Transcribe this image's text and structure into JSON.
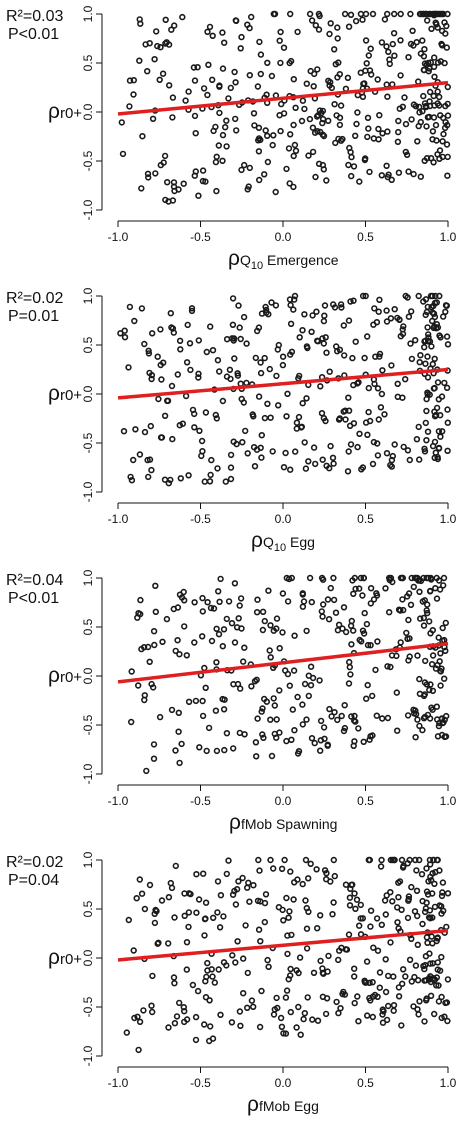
{
  "chart_data": [
    {
      "type": "scatter",
      "stats": {
        "r2": "R²=0.03",
        "p": "P<0.01"
      },
      "ylabel": {
        "main": "ρ",
        "sub": "r0+"
      },
      "xlabel": {
        "main": "ρ",
        "sub": "Q",
        "subsub": "10",
        "rest": " Emergence"
      },
      "xlim": [
        -1.0,
        1.0
      ],
      "ylim": [
        -1.0,
        1.0
      ],
      "xticks": [
        "-1.0",
        "-0.5",
        "0.0",
        "0.5",
        "1.0"
      ],
      "yticks": [
        "-1.0",
        "-0.5",
        "0.0",
        "0.5",
        "1.0"
      ],
      "trend": {
        "x": [
          -1.0,
          1.0
        ],
        "y": [
          -0.02,
          0.3
        ],
        "color": "#e02020"
      },
      "points": {
        "seed": 11,
        "count": 420,
        "slope": 0.16,
        "intercept": 0.14
      }
    },
    {
      "type": "scatter",
      "stats": {
        "r2": "R²=0.02",
        "p": "P=0.01"
      },
      "ylabel": {
        "main": "ρ",
        "sub": "r0+"
      },
      "xlabel": {
        "main": "ρ",
        "sub": "Q",
        "subsub": "10",
        "rest": " Egg"
      },
      "xlim": [
        -1.0,
        1.0
      ],
      "ylim": [
        -1.0,
        1.0
      ],
      "xticks": [
        "-1.0",
        "-0.5",
        "0.0",
        "0.5",
        "1.0"
      ],
      "yticks": [
        "-1.0",
        "-0.5",
        "0.0",
        "0.5",
        "1.0"
      ],
      "trend": {
        "x": [
          -1.0,
          1.0
        ],
        "y": [
          -0.04,
          0.25
        ],
        "color": "#e02020"
      },
      "points": {
        "seed": 23,
        "count": 400,
        "slope": 0.15,
        "intercept": 0.1
      }
    },
    {
      "type": "scatter",
      "stats": {
        "r2": "R²=0.04",
        "p": "P<0.01"
      },
      "ylabel": {
        "main": "ρ",
        "sub": "r0+"
      },
      "xlabel": {
        "main": "ρ",
        "sub": "fMob Spawning",
        "subsub": "",
        "rest": ""
      },
      "xlim": [
        -1.0,
        1.0
      ],
      "ylim": [
        -1.0,
        1.0
      ],
      "xticks": [
        "-1.0",
        "-0.5",
        "0.0",
        "0.5",
        "1.0"
      ],
      "yticks": [
        "-1.0",
        "-0.5",
        "0.0",
        "0.5",
        "1.0"
      ],
      "trend": {
        "x": [
          -1.0,
          1.0
        ],
        "y": [
          -0.06,
          0.33
        ],
        "color": "#e02020"
      },
      "points": {
        "seed": 37,
        "count": 380,
        "slope": 0.2,
        "intercept": 0.13
      }
    },
    {
      "type": "scatter",
      "stats": {
        "r2": "R²=0.02",
        "p": "P=0.04"
      },
      "ylabel": {
        "main": "ρ",
        "sub": "r0+"
      },
      "xlabel": {
        "main": "ρ",
        "sub": "fMob Egg",
        "subsub": "",
        "rest": ""
      },
      "xlim": [
        -1.0,
        1.0
      ],
      "ylim": [
        -1.0,
        1.0
      ],
      "xticks": [
        "-1.0",
        "-0.5",
        "0.0",
        "0.5",
        "1.0"
      ],
      "yticks": [
        "-1.0",
        "-0.5",
        "0.0",
        "0.5",
        "1.0"
      ],
      "trend": {
        "x": [
          -1.0,
          1.0
        ],
        "y": [
          -0.02,
          0.28
        ],
        "color": "#e02020"
      },
      "points": {
        "seed": 53,
        "count": 400,
        "slope": 0.15,
        "intercept": 0.13
      }
    }
  ]
}
